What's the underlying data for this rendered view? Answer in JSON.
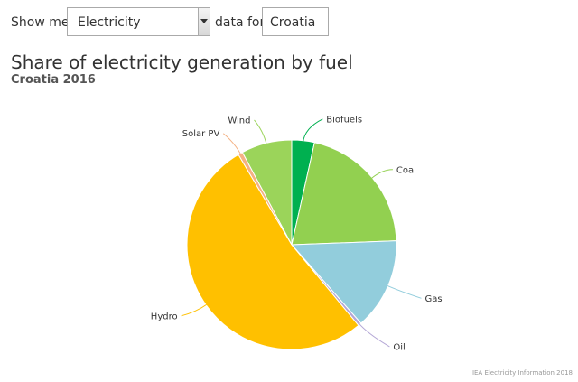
{
  "controls": {
    "show_me_label": "Show me",
    "energy_select_value": "Electricity",
    "data_for_label": "data for",
    "country_value": "Croatia"
  },
  "header": {
    "title": "Share of electricity generation by fuel",
    "subtitle": "Croatia 2016"
  },
  "chart_data": {
    "type": "pie",
    "title": "Share of electricity generation by fuel",
    "subtitle": "Croatia 2016",
    "slices": [
      {
        "label": "Biofuels",
        "value": 3.5,
        "color": "#00b050"
      },
      {
        "label": "Coal",
        "value": 20.9,
        "color": "#92d050"
      },
      {
        "label": "Gas",
        "value": 14.1,
        "color": "#92cddc"
      },
      {
        "label": "Oil",
        "value": 0.5,
        "color": "#b4a7d6"
      },
      {
        "label": "Hydro",
        "value": 52.5,
        "color": "#ffc000"
      },
      {
        "label": "Solar PV",
        "value": 0.7,
        "color": "#f4b183"
      },
      {
        "label": "Wind",
        "value": 7.8,
        "color": "#9bd45a"
      }
    ]
  },
  "footer": {
    "credit": "IEA Electricity Information 2018"
  }
}
